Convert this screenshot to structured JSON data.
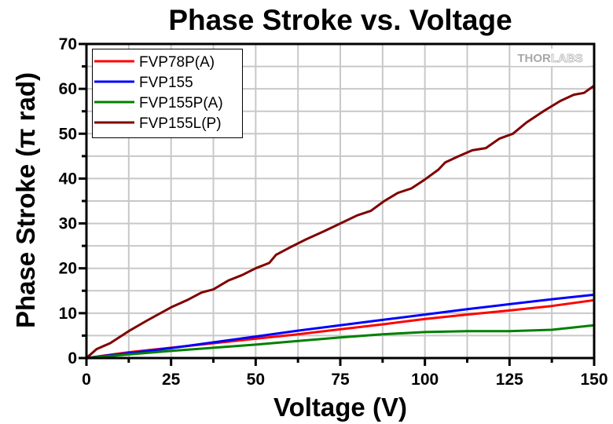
{
  "chart_data": {
    "type": "line",
    "title": "Phase Stroke vs. Voltage",
    "xlabel": "Voltage (V)",
    "ylabel": "Phase Stroke (π rad)",
    "xlim": [
      0,
      150
    ],
    "ylim": [
      0,
      70
    ],
    "xticks": [
      0,
      25,
      50,
      75,
      100,
      125,
      150
    ],
    "xtick_labels": [
      "0",
      "25",
      "50",
      "75",
      "100",
      "125",
      "150"
    ],
    "yticks": [
      0,
      10,
      20,
      30,
      40,
      50,
      60,
      70
    ],
    "ytick_labels": [
      "0",
      "10",
      "20",
      "30",
      "40",
      "50",
      "60",
      "70"
    ],
    "grid": true,
    "grid_x_step": 12.5,
    "grid_y_step": 5,
    "legend_position": "top-left",
    "watermark": {
      "bold_part": "THOR",
      "light_part": "LABS"
    },
    "series": [
      {
        "name": "FVP78P(A)",
        "color": "#ff0000",
        "x": [
          0,
          12.5,
          25,
          37.5,
          50,
          62.5,
          75,
          87.5,
          100,
          112.5,
          125,
          137.5,
          150
        ],
        "y": [
          0,
          1.3,
          2.3,
          3.3,
          4.3,
          5.3,
          6.4,
          7.5,
          8.7,
          9.7,
          10.6,
          11.6,
          12.9
        ]
      },
      {
        "name": "FVP155",
        "color": "#0000ff",
        "x": [
          0,
          12.5,
          25,
          37.5,
          50,
          62.5,
          75,
          87.5,
          100,
          112.5,
          125,
          137.5,
          150
        ],
        "y": [
          0,
          1.1,
          2.2,
          3.5,
          4.8,
          6.1,
          7.3,
          8.5,
          9.7,
          10.9,
          12.0,
          13.1,
          14.1
        ]
      },
      {
        "name": "FVP155P(A)",
        "color": "#008000",
        "x": [
          0,
          12.5,
          25,
          37.5,
          50,
          62.5,
          75,
          87.5,
          100,
          112.5,
          125,
          137.5,
          150
        ],
        "y": [
          0,
          0.8,
          1.6,
          2.3,
          3.0,
          3.8,
          4.6,
          5.3,
          5.8,
          6.0,
          6.0,
          6.3,
          7.3
        ]
      },
      {
        "name": "FVP155L(P)",
        "color": "#800000",
        "x": [
          0,
          3,
          7,
          12.5,
          18,
          25,
          30,
          34,
          37.5,
          42,
          46,
          50,
          54,
          56,
          60,
          65,
          70,
          75,
          80,
          84,
          88,
          92,
          96,
          100,
          104,
          106,
          110,
          114,
          118,
          122,
          126,
          130,
          135,
          140,
          144,
          147,
          150
        ],
        "y": [
          0,
          2.0,
          3.3,
          6.0,
          8.4,
          11.3,
          13.0,
          14.6,
          15.3,
          17.3,
          18.5,
          20.0,
          21.2,
          23.0,
          24.6,
          26.5,
          28.2,
          30.0,
          31.8,
          32.8,
          35.0,
          36.8,
          37.8,
          39.8,
          42.0,
          43.6,
          45.0,
          46.3,
          46.8,
          48.9,
          50.0,
          52.5,
          55.0,
          57.3,
          58.7,
          59.1,
          60.7
        ]
      }
    ]
  }
}
